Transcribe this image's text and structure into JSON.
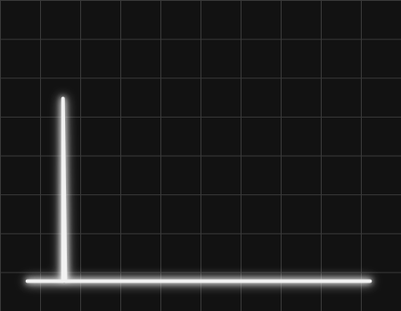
{
  "chart_data": {
    "type": "line",
    "x": [
      0.67,
      1.5,
      1.56,
      1.56,
      1.62,
      9.22
    ],
    "values": [
      0.78,
      0.78,
      0.78,
      5.48,
      0.78,
      0.78
    ],
    "color": "#f2f2f2",
    "xlim": [
      0,
      10
    ],
    "xticks": [
      0,
      1,
      2,
      3,
      4,
      5,
      6,
      7,
      8,
      9,
      10
    ],
    "ylim": [
      0,
      8
    ],
    "yticks": [
      0,
      1,
      2,
      3,
      4,
      5,
      6,
      7,
      8
    ],
    "grid": true,
    "tick_labels": false
  }
}
